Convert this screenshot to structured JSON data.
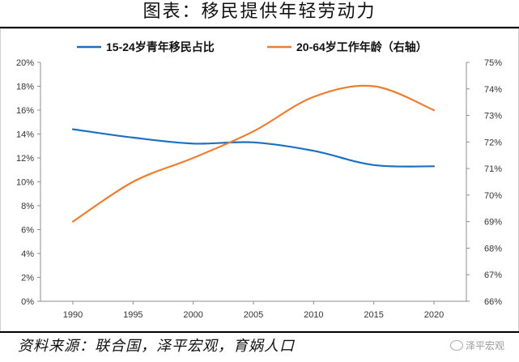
{
  "title": "图表：移民提供年轻劳动力",
  "source": "资料来源：联合国，泽平宏观，育娲人口",
  "watermark": "泽平宏观",
  "chart_data": {
    "type": "line",
    "x": [
      1990,
      1995,
      2000,
      2005,
      2010,
      2015,
      2020
    ],
    "x_ticks": [
      "1990",
      "1995",
      "2000",
      "2005",
      "2010",
      "2015",
      "2020"
    ],
    "left_axis": {
      "min": 0,
      "max": 20,
      "step": 2,
      "ticks": [
        "0%",
        "2%",
        "4%",
        "6%",
        "8%",
        "10%",
        "12%",
        "14%",
        "16%",
        "18%",
        "20%"
      ]
    },
    "right_axis": {
      "min": 66,
      "max": 75,
      "step": 1,
      "ticks": [
        "66%",
        "67%",
        "68%",
        "69%",
        "70%",
        "71%",
        "72%",
        "73%",
        "74%",
        "75%"
      ]
    },
    "legend_position": "top",
    "grid": false,
    "series": [
      {
        "name": "15-24岁青年移民占比",
        "axis": "left",
        "color": "#1f6fc0",
        "values": [
          14.4,
          13.7,
          13.2,
          13.3,
          12.6,
          11.4,
          11.3
        ]
      },
      {
        "name": "20-64岁工作年龄（右轴）",
        "axis": "right",
        "color": "#ed7d31",
        "values": [
          69.0,
          70.5,
          71.4,
          72.4,
          73.7,
          74.1,
          73.2
        ]
      }
    ]
  }
}
